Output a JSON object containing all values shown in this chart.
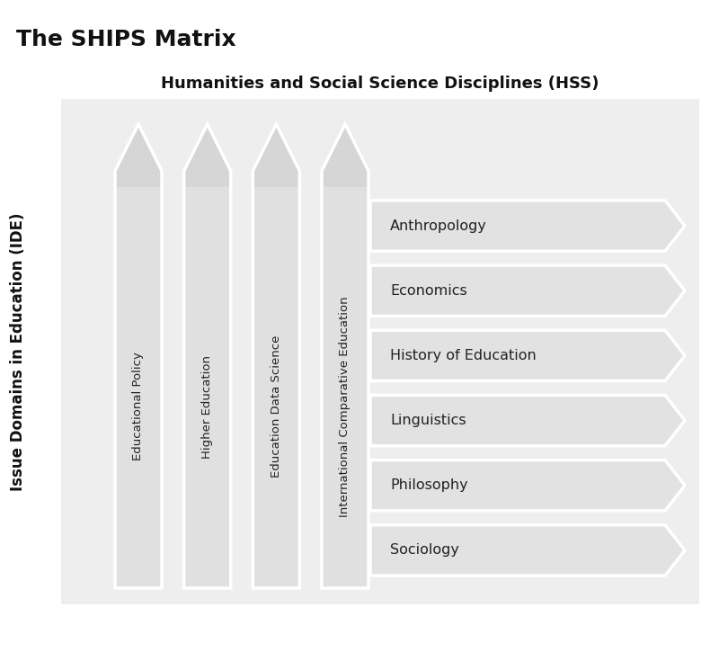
{
  "title": "The SHIPS Matrix",
  "hss_label": "Humanities and Social Science Disciplines (HSS)",
  "ide_label": "Issue Domains in Education (IDE)",
  "hss_columns": [
    "Educational Policy",
    "Higher Education",
    "Education Data Science",
    "International Comparative Education"
  ],
  "ide_rows": [
    "Anthropology",
    "Economics",
    "History of Education",
    "Linguistics",
    "Philosophy",
    "Sociology"
  ],
  "bg_color": "#ffffff",
  "grid_bg_color": "#eeeeee",
  "col_color": "#d6d6d6",
  "row_color": "#e2e2e2",
  "title_fontsize": 18,
  "hss_label_fontsize": 13,
  "ide_label_fontsize": 12,
  "col_label_fontsize": 9.5,
  "row_label_fontsize": 11.5
}
